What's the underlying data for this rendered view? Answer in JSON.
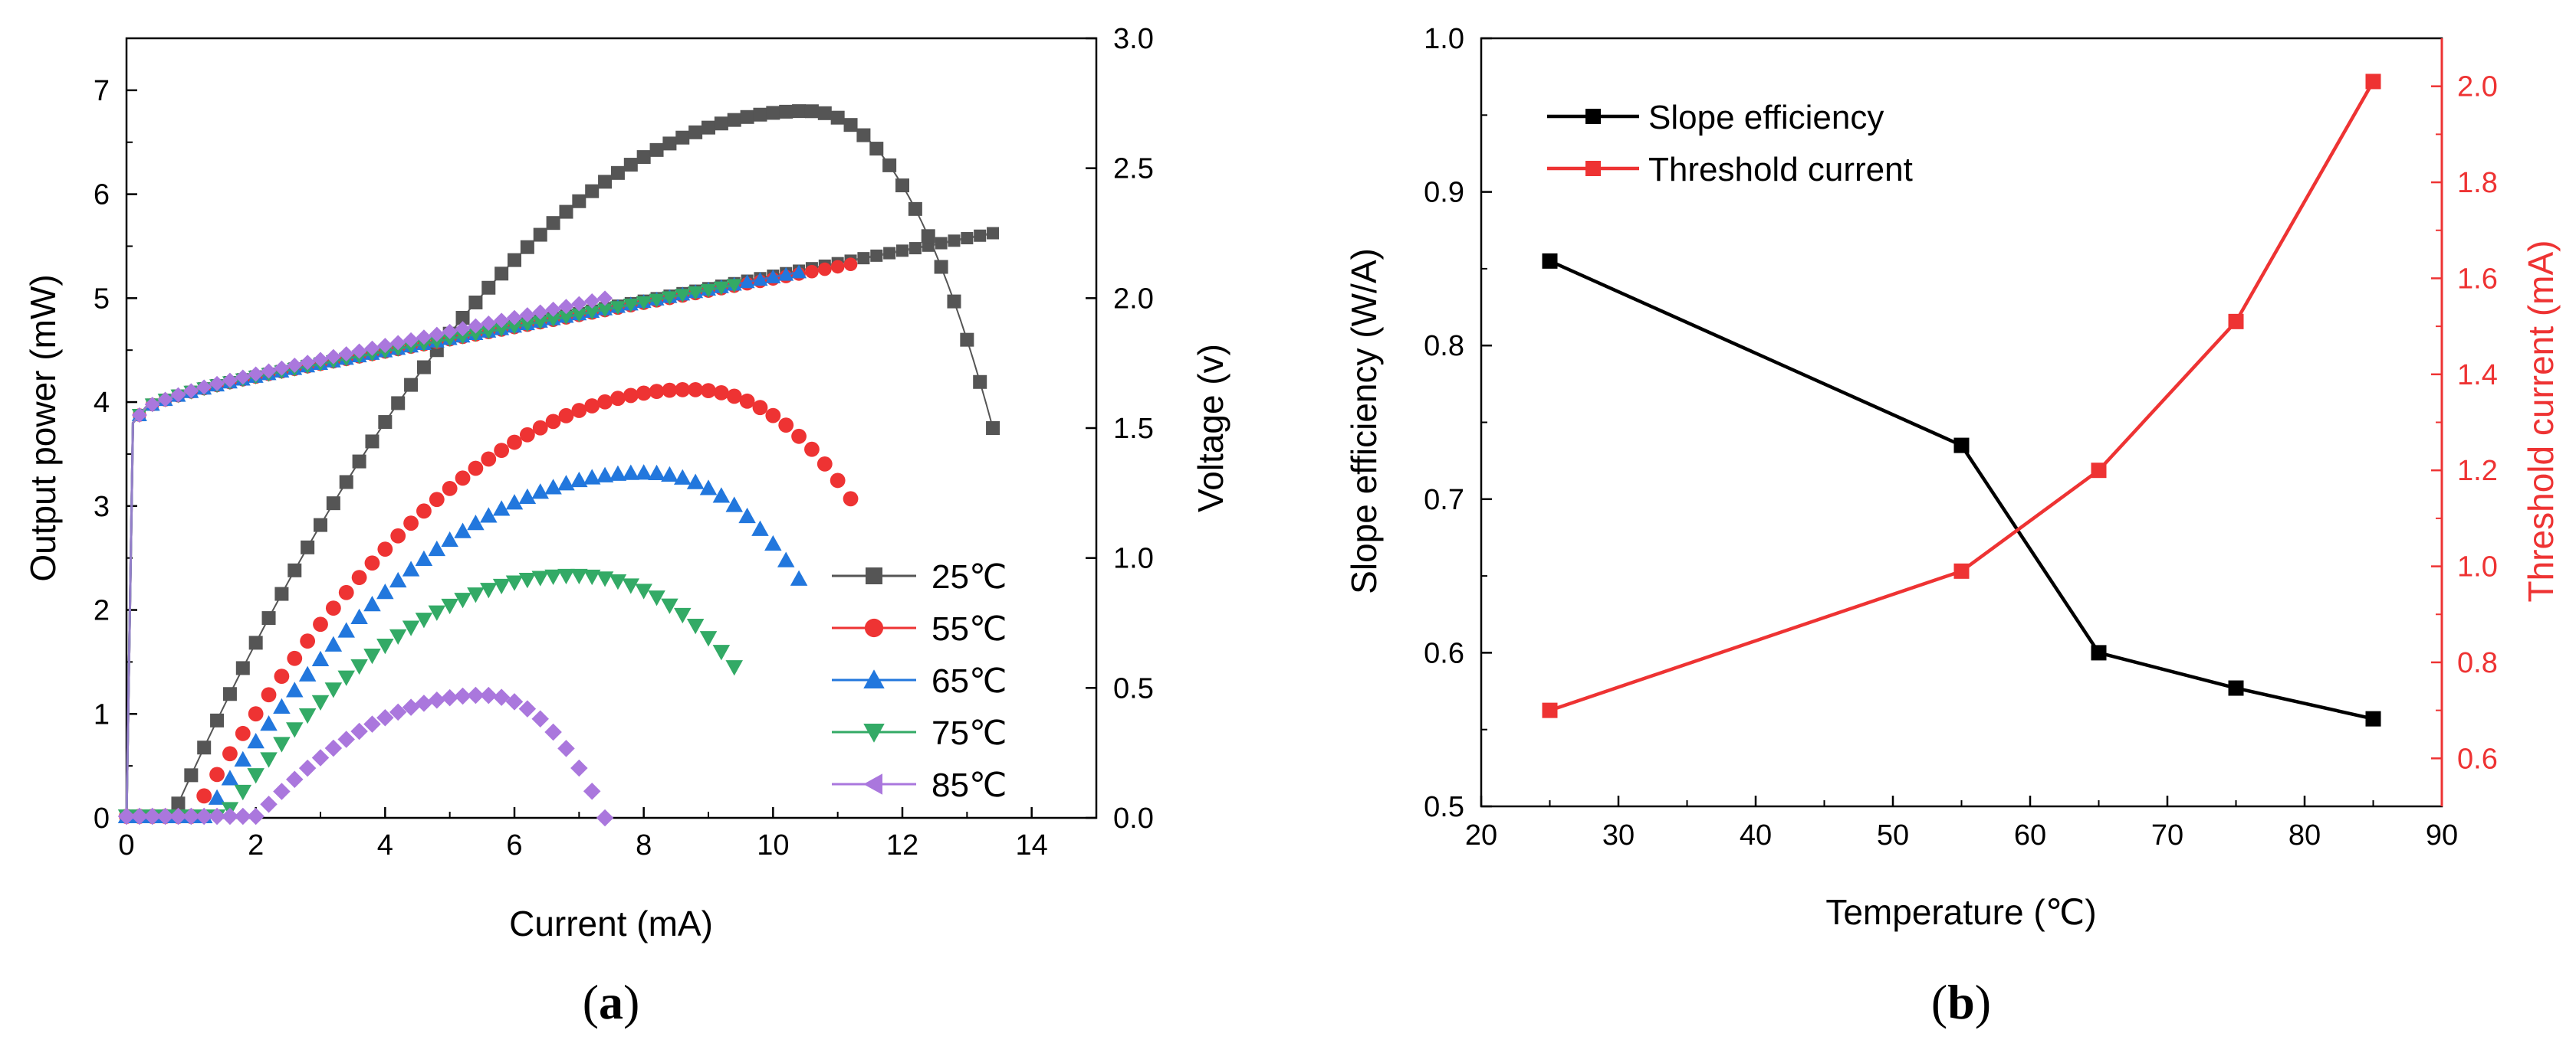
{
  "chart_data": [
    {
      "type": "line",
      "panel_label": {
        "open": "(",
        "letter": "a",
        "close": ")"
      },
      "xlabel": "Current (mA)",
      "ylabel": "Output power (mW)",
      "y2label": "Voltage (v)",
      "xlim": [
        0,
        15
      ],
      "ylim": [
        0,
        7.5
      ],
      "y2lim": [
        0,
        3.0
      ],
      "xticks": [
        "0",
        "2",
        "4",
        "6",
        "8",
        "10",
        "12",
        "14"
      ],
      "yticks": [
        "0",
        "1",
        "2",
        "3",
        "4",
        "5",
        "6",
        "7"
      ],
      "y2ticks": [
        "0.0",
        "0.5",
        "1.0",
        "1.5",
        "2.0",
        "2.5",
        "3.0"
      ],
      "legend_position": "bottom-right",
      "series": [
        {
          "name": "25℃",
          "color": "#555555",
          "marker": "square",
          "threshold": 0.7,
          "peak_x": 10.5,
          "peak_y": 6.8,
          "end_x": 13.4,
          "end_y": 3.75,
          "v_end": 2.25,
          "step": 0.2
        },
        {
          "name": "55℃",
          "color": "#ee3333",
          "marker": "circle",
          "threshold": 1.0,
          "peak_x": 8.7,
          "peak_y": 4.12,
          "end_x": 11.2,
          "end_y": 3.07,
          "v_end": 2.13,
          "step": 0.2
        },
        {
          "name": "65℃",
          "color": "#2277dd",
          "marker": "triangle-up",
          "threshold": 1.2,
          "peak_x": 8.0,
          "peak_y": 3.32,
          "end_x": 10.4,
          "end_y": 2.3,
          "v_end": 2.1,
          "step": 0.2
        },
        {
          "name": "75℃",
          "color": "#33aa66",
          "marker": "triangle-down",
          "threshold": 1.5,
          "peak_x": 6.9,
          "peak_y": 2.33,
          "end_x": 9.4,
          "end_y": 1.45,
          "v_end": 2.05,
          "step": 0.2
        },
        {
          "name": "85℃",
          "color": "#aa77dd",
          "marker": "diamond",
          "threshold": 2.0,
          "peak_x": 5.5,
          "peak_y": 1.18,
          "end_x": 7.4,
          "end_y": 0.0,
          "v_end": 2.0,
          "step": 0.2
        }
      ],
      "legend_marker_85": "triangle-left"
    },
    {
      "type": "line",
      "panel_label": {
        "open": "(",
        "letter": "b",
        "close": ")"
      },
      "xlabel": "Temperature (℃)",
      "ylabel": "Slope efficiency (W/A)",
      "y2label": "Threshold current (mA)",
      "xlim": [
        20,
        90
      ],
      "ylim": [
        0.5,
        1.0
      ],
      "y2lim": [
        0.5,
        2.1
      ],
      "xticks": [
        "20",
        "30",
        "40",
        "50",
        "60",
        "70",
        "80",
        "90"
      ],
      "yticks": [
        "0.5",
        "0.6",
        "0.7",
        "0.8",
        "0.9",
        "1.0"
      ],
      "y2ticks": [
        "0.6",
        "0.8",
        "1.0",
        "1.2",
        "1.4",
        "1.6",
        "1.8",
        "2.0"
      ],
      "legend_position": "top-left",
      "x": [
        25,
        55,
        65,
        75,
        85
      ],
      "series": [
        {
          "name": "Slope efficiency",
          "color": "#000000",
          "axis": "left",
          "values": [
            0.855,
            0.735,
            0.6,
            0.577,
            0.557
          ]
        },
        {
          "name": "Threshold current",
          "color": "#ee3333",
          "axis": "right",
          "values": [
            0.7,
            0.99,
            1.2,
            1.51,
            2.01
          ]
        }
      ]
    }
  ]
}
